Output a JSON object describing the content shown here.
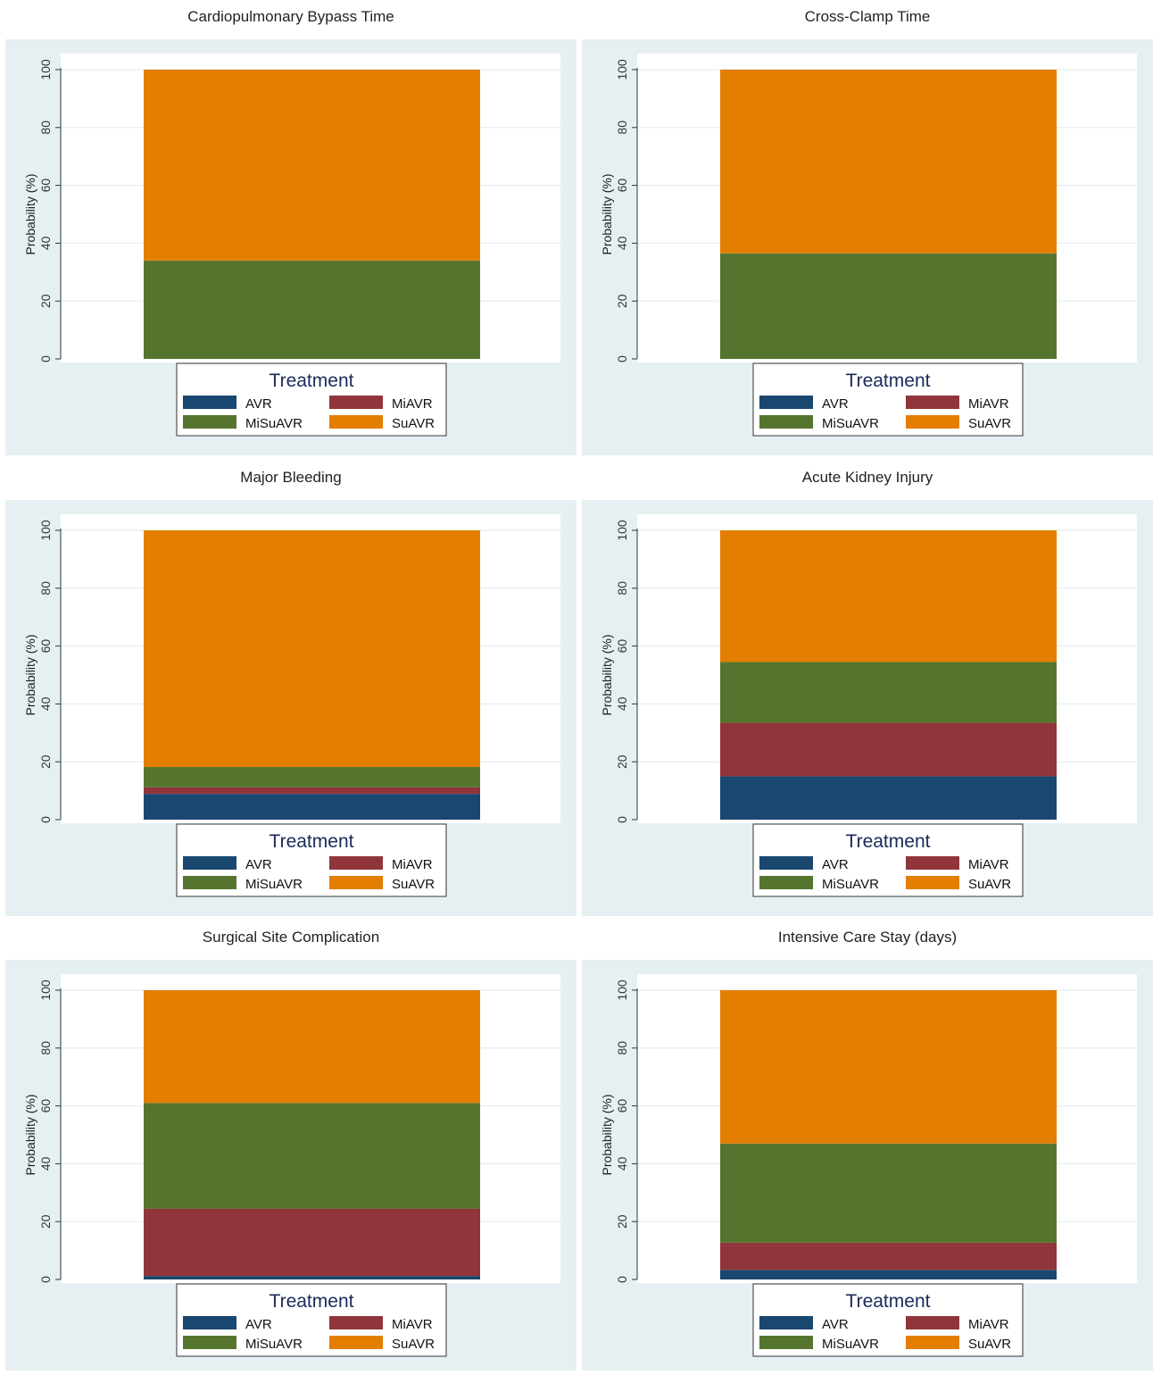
{
  "colors": {
    "AVR": "#1a476f",
    "MiAVR": "#90353b",
    "MiSuAVR": "#55752f",
    "SuAVR": "#e37e00",
    "panel_bg": "#e6f0f3",
    "plot_bg": "#ffffff",
    "grid": "#e9f1f4",
    "legend_title": "#1a2a5a"
  },
  "chart_data": [
    {
      "type": "bar",
      "stacked": true,
      "title": "Cardiopulmonary Bypass Time",
      "ylabel": "Probability (%)",
      "ylim": [
        0,
        100
      ],
      "yticks": [
        "0",
        "20",
        "40",
        "60",
        "80",
        "100"
      ],
      "series": [
        {
          "name": "AVR",
          "values": [
            0
          ]
        },
        {
          "name": "MiAVR",
          "values": [
            0
          ]
        },
        {
          "name": "MiSuAVR",
          "values": [
            34
          ]
        },
        {
          "name": "SuAVR",
          "values": [
            66
          ]
        }
      ],
      "legend": {
        "title": "Treatment",
        "position": "bottom",
        "labels": [
          "AVR",
          "MiAVR",
          "MiSuAVR",
          "SuAVR"
        ]
      }
    },
    {
      "type": "bar",
      "stacked": true,
      "title": "Cross-Clamp Time",
      "ylabel": "Probability (%)",
      "ylim": [
        0,
        100
      ],
      "yticks": [
        "0",
        "20",
        "40",
        "60",
        "80",
        "100"
      ],
      "series": [
        {
          "name": "AVR",
          "values": [
            0
          ]
        },
        {
          "name": "MiAVR",
          "values": [
            0
          ]
        },
        {
          "name": "MiSuAVR",
          "values": [
            36.5
          ]
        },
        {
          "name": "SuAVR",
          "values": [
            63.5
          ]
        }
      ],
      "legend": {
        "title": "Treatment",
        "position": "bottom",
        "labels": [
          "AVR",
          "MiAVR",
          "MiSuAVR",
          "SuAVR"
        ]
      }
    },
    {
      "type": "bar",
      "stacked": true,
      "title": "Major Bleeding",
      "ylabel": "Probability (%)",
      "ylim": [
        0,
        100
      ],
      "yticks": [
        "0",
        "20",
        "40",
        "60",
        "80",
        "100"
      ],
      "series": [
        {
          "name": "AVR",
          "values": [
            8.9
          ]
        },
        {
          "name": "MiAVR",
          "values": [
            2.3
          ]
        },
        {
          "name": "MiSuAVR",
          "values": [
            7
          ]
        },
        {
          "name": "SuAVR",
          "values": [
            81.8
          ]
        }
      ],
      "legend": {
        "title": "Treatment",
        "position": "bottom",
        "labels": [
          "AVR",
          "MiAVR",
          "MiSuAVR",
          "SuAVR"
        ]
      }
    },
    {
      "type": "bar",
      "stacked": true,
      "title": "Acute Kidney Injury",
      "ylabel": "Probability (%)",
      "ylim": [
        0,
        100
      ],
      "yticks": [
        "0",
        "20",
        "40",
        "60",
        "80",
        "100"
      ],
      "series": [
        {
          "name": "AVR",
          "values": [
            15
          ]
        },
        {
          "name": "MiAVR",
          "values": [
            18.5
          ]
        },
        {
          "name": "MiSuAVR",
          "values": [
            21
          ]
        },
        {
          "name": "SuAVR",
          "values": [
            45.5
          ]
        }
      ],
      "legend": {
        "title": "Treatment",
        "position": "bottom",
        "labels": [
          "AVR",
          "MiAVR",
          "MiSuAVR",
          "SuAVR"
        ]
      }
    },
    {
      "type": "bar",
      "stacked": true,
      "title": "Surgical Site Complication",
      "ylabel": "Probability (%)",
      "ylim": [
        0,
        100
      ],
      "yticks": [
        "0",
        "20",
        "40",
        "60",
        "80",
        "100"
      ],
      "series": [
        {
          "name": "AVR",
          "values": [
            1.2
          ]
        },
        {
          "name": "MiAVR",
          "values": [
            23.3
          ]
        },
        {
          "name": "MiSuAVR",
          "values": [
            36.5
          ]
        },
        {
          "name": "SuAVR",
          "values": [
            39
          ]
        }
      ],
      "legend": {
        "title": "Treatment",
        "position": "bottom",
        "labels": [
          "AVR",
          "MiAVR",
          "MiSuAVR",
          "SuAVR"
        ]
      }
    },
    {
      "type": "bar",
      "stacked": true,
      "title": "Intensive Care Stay (days)",
      "ylabel": "Probability (%)",
      "ylim": [
        0,
        100
      ],
      "yticks": [
        "0",
        "20",
        "40",
        "60",
        "80",
        "100"
      ],
      "series": [
        {
          "name": "AVR",
          "values": [
            3.3
          ]
        },
        {
          "name": "MiAVR",
          "values": [
            9.4
          ]
        },
        {
          "name": "MiSuAVR",
          "values": [
            34.3
          ]
        },
        {
          "name": "SuAVR",
          "values": [
            53
          ]
        }
      ],
      "legend": {
        "title": "Treatment",
        "position": "bottom",
        "labels": [
          "AVR",
          "MiAVR",
          "MiSuAVR",
          "SuAVR"
        ]
      }
    }
  ]
}
